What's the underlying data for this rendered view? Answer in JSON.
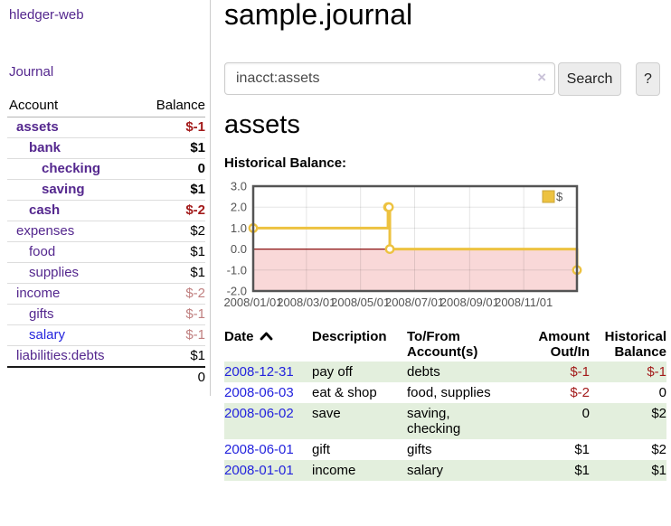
{
  "app": {
    "brand": "hledger-web",
    "nav_journal": "Journal"
  },
  "sidebar": {
    "headers": {
      "account": "Account",
      "balance": "Balance"
    },
    "accounts": [
      {
        "name": "assets",
        "indent": 0,
        "bold": true,
        "name_color": "purple",
        "balance": "$-1",
        "balance_tone": "neg-strong"
      },
      {
        "name": "bank",
        "indent": 1,
        "bold": true,
        "name_color": "purple",
        "balance": "$1",
        "balance_tone": "normal"
      },
      {
        "name": "checking",
        "indent": 2,
        "bold": true,
        "name_color": "purple",
        "balance": "0",
        "balance_tone": "normal"
      },
      {
        "name": "saving",
        "indent": 2,
        "bold": true,
        "name_color": "purple",
        "balance": "$1",
        "balance_tone": "normal"
      },
      {
        "name": "cash",
        "indent": 1,
        "bold": true,
        "name_color": "purple",
        "balance": "$-2",
        "balance_tone": "neg-strong"
      },
      {
        "name": "expenses",
        "indent": 0,
        "bold": false,
        "name_color": "purple",
        "balance": "$2",
        "balance_tone": "normal"
      },
      {
        "name": "food",
        "indent": 1,
        "bold": false,
        "name_color": "purple",
        "balance": "$1",
        "balance_tone": "normal"
      },
      {
        "name": "supplies",
        "indent": 1,
        "bold": false,
        "name_color": "purple",
        "balance": "$1",
        "balance_tone": "normal"
      },
      {
        "name": "income",
        "indent": 0,
        "bold": false,
        "name_color": "purple",
        "balance": "$-2",
        "balance_tone": "neg-muted"
      },
      {
        "name": "gifts",
        "indent": 1,
        "bold": false,
        "name_color": "purple",
        "balance": "$-1",
        "balance_tone": "neg-muted"
      },
      {
        "name": "salary",
        "indent": 1,
        "bold": false,
        "name_color": "blue",
        "balance": "$-1",
        "balance_tone": "neg-muted"
      },
      {
        "name": "liabilities:debts",
        "indent": 0,
        "bold": false,
        "name_color": "purple",
        "balance": "$1",
        "balance_tone": "normal"
      }
    ],
    "total": "0"
  },
  "header": {
    "title": "sample.journal"
  },
  "search": {
    "value": "inacct:assets",
    "clear_icon": "×",
    "button_label": "Search",
    "help_label": "?"
  },
  "main": {
    "account_heading": "assets",
    "chart_label": "Historical Balance:"
  },
  "chart_data": {
    "type": "line",
    "step": true,
    "title": "Historical Balance:",
    "series": [
      {
        "name": "$",
        "color": "#edc240",
        "points": [
          [
            "2008-01-01",
            1
          ],
          [
            "2008-06-01",
            2
          ],
          [
            "2008-06-02",
            2
          ],
          [
            "2008-06-03",
            0
          ],
          [
            "2008-12-31",
            -1
          ]
        ]
      }
    ],
    "x_range": [
      "2008-01-01",
      "2008-12-31"
    ],
    "ylim": [
      -2,
      3
    ],
    "y_ticks": [
      {
        "v": 3,
        "label": "3.0"
      },
      {
        "v": 2,
        "label": "2.0"
      },
      {
        "v": 1,
        "label": "1.0"
      },
      {
        "v": 0,
        "label": "0.0"
      },
      {
        "v": -1,
        "label": "-1.0"
      },
      {
        "v": -2,
        "label": "-2.0"
      }
    ],
    "x_ticks": [
      {
        "date": "2008-01-01",
        "label": "2008/01/01"
      },
      {
        "date": "2008-03-01",
        "label": "2008/03/01"
      },
      {
        "date": "2008-05-01",
        "label": "2008/05/01"
      },
      {
        "date": "2008-07-01",
        "label": "2008/07/01"
      },
      {
        "date": "2008-09-01",
        "label": "2008/09/01"
      },
      {
        "date": "2008-11-01",
        "label": "2008/11/01"
      }
    ],
    "legend": {
      "position": "top-right",
      "entries": [
        "$"
      ]
    },
    "grid": true,
    "negative_region_color": "#f9d8d8",
    "zero_line_color": "#8b1414",
    "border_color": "#545454",
    "tick_label_color": "#545454"
  },
  "register": {
    "columns": [
      {
        "label": "Date",
        "align": "left",
        "sorted": "ascending"
      },
      {
        "label": "Description",
        "align": "left"
      },
      {
        "label": "To/From Account(s)",
        "align": "left"
      },
      {
        "label": "Amount Out/In",
        "align": "right"
      },
      {
        "label": "Historical Balance",
        "align": "right"
      }
    ],
    "rows": [
      {
        "date": "2008-12-31",
        "description": "pay off",
        "accounts": "debts",
        "amount": "$-1",
        "amount_negative": true,
        "balance": "$-1",
        "balance_negative": true
      },
      {
        "date": "2008-06-03",
        "description": "eat & shop",
        "accounts": "food, supplies",
        "amount": "$-2",
        "amount_negative": true,
        "balance": "0",
        "balance_negative": false
      },
      {
        "date": "2008-06-02",
        "description": "save",
        "accounts": "saving, checking",
        "amount": "0",
        "amount_negative": false,
        "balance": "$2",
        "balance_negative": false
      },
      {
        "date": "2008-06-01",
        "description": "gift",
        "accounts": "gifts",
        "amount": "$1",
        "amount_negative": false,
        "balance": "$2",
        "balance_negative": false
      },
      {
        "date": "2008-01-01",
        "description": "income",
        "accounts": "salary",
        "amount": "$1",
        "amount_negative": false,
        "balance": "$1",
        "balance_negative": false
      }
    ]
  },
  "colors": {
    "accent_purple": "#54278e",
    "link_blue": "#2323dd",
    "negative_strong": "#a31b1b",
    "negative_muted": "#c07f7f",
    "row_green": "#e3efdd",
    "chart_yellow": "#edc240"
  }
}
